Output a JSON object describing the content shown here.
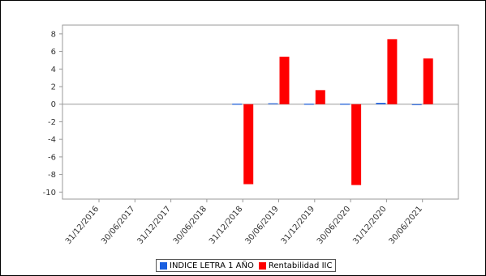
{
  "chart_data": {
    "type": "bar",
    "categories": [
      "31/12/2016",
      "30/06/2017",
      "31/12/2017",
      "30/06/2018",
      "31/12/2018",
      "30/06/2019",
      "31/12/2019",
      "30/06/2020",
      "31/12/2020",
      "30/06/2021"
    ],
    "series": [
      {
        "name": "INDICE LETRA 1 AÑO",
        "color": "#1a5fe0",
        "values": [
          null,
          null,
          null,
          null,
          0.0,
          0.1,
          0.0,
          0.0,
          0.15,
          -0.1
        ]
      },
      {
        "name": "Rentabilidad IIC",
        "color": "#ff0000",
        "values": [
          null,
          null,
          null,
          null,
          -9.1,
          5.4,
          1.6,
          -9.2,
          7.4,
          5.2
        ]
      }
    ],
    "ylim": [
      -10.8,
      9
    ],
    "yticks": [
      8,
      6,
      4,
      2,
      0,
      -2,
      -4,
      -6,
      -8,
      -10
    ],
    "grid": false,
    "legend_position": "bottom-center"
  }
}
